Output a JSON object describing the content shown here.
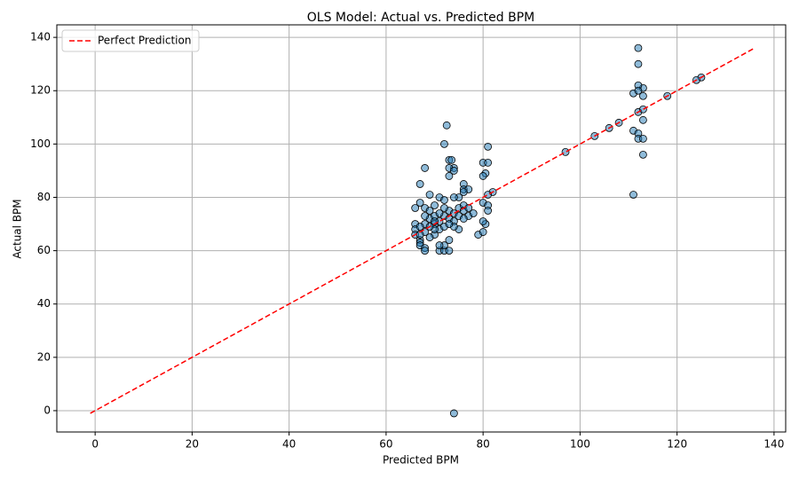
{
  "chart_data": {
    "type": "scatter",
    "title": "OLS Model: Actual vs. Predicted BPM",
    "x_label": "Predicted BPM",
    "y_label": "Actual BPM",
    "xlim": [
      -7.9,
      142.4
    ],
    "ylim": [
      -8,
      144.7
    ],
    "xticks": [
      0,
      20,
      40,
      60,
      80,
      100,
      120,
      140
    ],
    "yticks": [
      0,
      20,
      40,
      60,
      80,
      100,
      120,
      140
    ],
    "grid": true,
    "legend_loc": "upper left",
    "points": {
      "color": "#1f77b4",
      "x": [
        74,
        111,
        113,
        112,
        112,
        125,
        124,
        118,
        113,
        113,
        112,
        111,
        112,
        112,
        113,
        113,
        111,
        112,
        112,
        113,
        108,
        106,
        103,
        97,
        72.5,
        72,
        73,
        73.5,
        74,
        73,
        74,
        68,
        67,
        73,
        80,
        81,
        81,
        80.5,
        80,
        82,
        81,
        80,
        81,
        81,
        79,
        80,
        80.5,
        80,
        76,
        76,
        77,
        76,
        75,
        74,
        71,
        72,
        69,
        67,
        66,
        70,
        68,
        66,
        66,
        66,
        67,
        67,
        67,
        68,
        68,
        71,
        72,
        73,
        72,
        71,
        73,
        70,
        69,
        68,
        68,
        69,
        70,
        70,
        71,
        71,
        72,
        72,
        73,
        73,
        74,
        74,
        75,
        75,
        76,
        76,
        77,
        77,
        75,
        74,
        76,
        78,
        69,
        68,
        67,
        67,
        70,
        71,
        72,
        73,
        69,
        70
      ],
      "y": [
        -1,
        81,
        96,
        136,
        130,
        125,
        124,
        118,
        118,
        121,
        122,
        119,
        120,
        112,
        113,
        109,
        105,
        104,
        102,
        102,
        108,
        106,
        103,
        97,
        107,
        100,
        94,
        94,
        91,
        91,
        90,
        91,
        85,
        88,
        93,
        93,
        99,
        89,
        88,
        82,
        81,
        78,
        77,
        75,
        66,
        67,
        70,
        71,
        85,
        83,
        83,
        82,
        80,
        80,
        80,
        79,
        81,
        78,
        76,
        77,
        76,
        70,
        68,
        66,
        64,
        63,
        62,
        61,
        60,
        60,
        60,
        60,
        62,
        62,
        64,
        66,
        65,
        67,
        70,
        72,
        73,
        70,
        71,
        68,
        69,
        73,
        72,
        75,
        74,
        71,
        76,
        73,
        77,
        75,
        76,
        73,
        68,
        69,
        72,
        74,
        75,
        73,
        69,
        66,
        68,
        74,
        76,
        70,
        69,
        71
      ]
    },
    "reference_line": {
      "name": "Perfect Prediction",
      "color": "#ff0000",
      "x": [
        -1,
        136
      ],
      "y": [
        -1,
        136
      ]
    }
  }
}
